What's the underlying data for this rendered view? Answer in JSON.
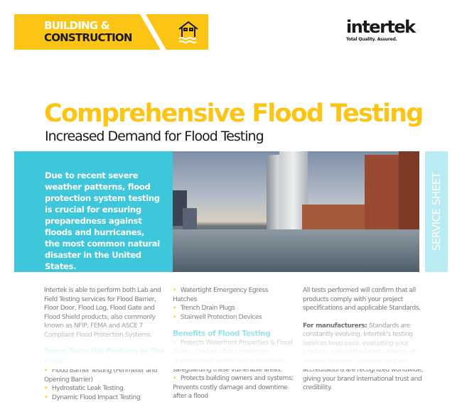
{
  "banner": {
    "line1": "BUILDING &",
    "line2": "CONSTRUCTION",
    "icon": "flood-house-icon",
    "color": "#fcc515"
  },
  "logo": {
    "name": "intertek",
    "tagline": "Total Quality. Assured."
  },
  "title": "Comprehensive Flood Testing",
  "subtitle": "Increased Demand for Flood Testing",
  "intro": "Due to recent severe weather patterns, flood protection system testing is crucial for ensuring preparedness against floods and hurricanes, the most common natural disaster in the United States.",
  "side_tab": "SERVICE SHEET",
  "col1": {
    "para": "Intertek is able to perform both Lab and Field Testing services for Flood Barrier, Floor Door, Flood Log, Flood Gate and Flood Shield products, also commonly known as NFIP, FEMA and ASCE 7 Compliant Flood Protection Systems.",
    "heading": "Some Tests We Perform in The Field",
    "items": [
      "Flood Barrier Testing (Perimeter and Opening Barrier)",
      "Hydrostatic Leak Testing",
      "Dynamic Flood Impact Testing"
    ]
  },
  "col2": {
    "items": [
      "Watertight Emergency Egress Hatches",
      "Trench Drain Plugs",
      "Stairwell Protection Devices"
    ],
    "heading": "Benefits of Flood Testing",
    "benefits": [
      "Protects Waterfront Properties & Flood Zones: Confirms flood protection systems meet performance standards, safeguarding these vulnerable areas.",
      "Protects building owners and systems: Prevents costly damage and downtime after a flood"
    ]
  },
  "col3": {
    "para": "All tests performed will confirm that all products comply with your project specifications and applicable Standards.",
    "label": "For manufacturers:",
    "para2": "Standards are constantly evolving. Intertek's testing services keep pace, evaluating your products against the latest versions of relevant industry standards and our accreditations are recognized worldwide, giving your brand international trust and credibility."
  },
  "colors": {
    "accent_yellow": "#fcc515",
    "accent_cyan": "#3ec6db",
    "tab_cyan": "#b9ebf3"
  }
}
